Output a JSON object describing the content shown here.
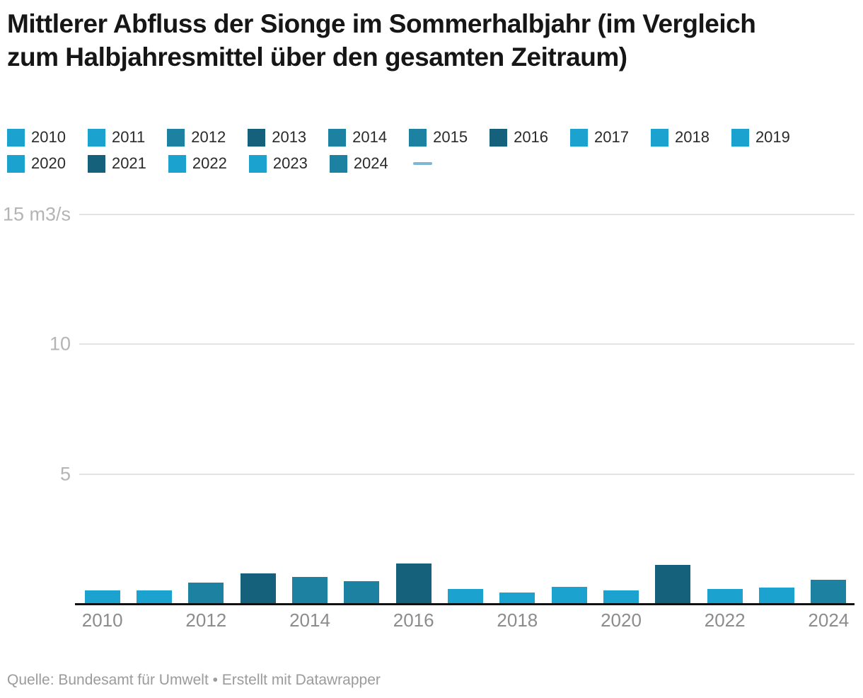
{
  "title": "Mittlerer Abfluss der Sionge im Sommerhalbjahr (im Vergleich zum Halbjahresmittel über den gesamten Zeitraum)",
  "footer": "Quelle: Bundesamt für Umwelt • Erstellt mit Datawrapper",
  "palette": {
    "light": "#1ca2ce",
    "medium": "#1d81a2",
    "dark": "#15607a",
    "line_marker": "#7db7d3",
    "grid": "#e3e3e3",
    "axis": "#111111",
    "y_label": "#b4b4b4",
    "x_label": "#8c8c8c"
  },
  "legend": {
    "items": [
      {
        "label": "2010",
        "color_key": "light"
      },
      {
        "label": "2011",
        "color_key": "light"
      },
      {
        "label": "2012",
        "color_key": "medium"
      },
      {
        "label": "2013",
        "color_key": "dark"
      },
      {
        "label": "2014",
        "color_key": "medium"
      },
      {
        "label": "2015",
        "color_key": "medium"
      },
      {
        "label": "2016",
        "color_key": "dark"
      },
      {
        "label": "2017",
        "color_key": "light"
      },
      {
        "label": "2018",
        "color_key": "light"
      },
      {
        "label": "2019",
        "color_key": "light"
      },
      {
        "label": "2020",
        "color_key": "light"
      },
      {
        "label": "2021",
        "color_key": "dark"
      },
      {
        "label": "2022",
        "color_key": "light"
      },
      {
        "label": "2023",
        "color_key": "light"
      },
      {
        "label": "2024",
        "color_key": "medium"
      }
    ],
    "line_marker_label": ""
  },
  "chart_data": {
    "type": "bar",
    "title": "Mittlerer Abfluss der Sionge im Sommerhalbjahr (im Vergleich zum Halbjahresmittel über den gesamten Zeitraum)",
    "xlabel": "",
    "ylabel": "m3/s",
    "ylim": [
      0,
      15
    ],
    "grid": true,
    "legend_position": "top",
    "categories": [
      "2010",
      "2011",
      "2012",
      "2013",
      "2014",
      "2015",
      "2016",
      "2017",
      "2018",
      "2019",
      "2020",
      "2021",
      "2022",
      "2023",
      "2024"
    ],
    "values": [
      0.52,
      0.52,
      0.82,
      1.18,
      1.04,
      0.87,
      1.56,
      0.57,
      0.44,
      0.66,
      0.52,
      1.5,
      0.56,
      0.63,
      0.92
    ],
    "bar_color_keys": [
      "light",
      "light",
      "medium",
      "dark",
      "medium",
      "medium",
      "dark",
      "light",
      "light",
      "light",
      "light",
      "dark",
      "light",
      "light",
      "medium"
    ],
    "yticks": [
      {
        "value": 15,
        "label": "15 m3/s"
      },
      {
        "value": 10,
        "label": "10"
      },
      {
        "value": 5,
        "label": "5"
      }
    ],
    "xtick_labels": [
      "2010",
      "2012",
      "2014",
      "2016",
      "2018",
      "2020",
      "2022",
      "2024"
    ]
  }
}
